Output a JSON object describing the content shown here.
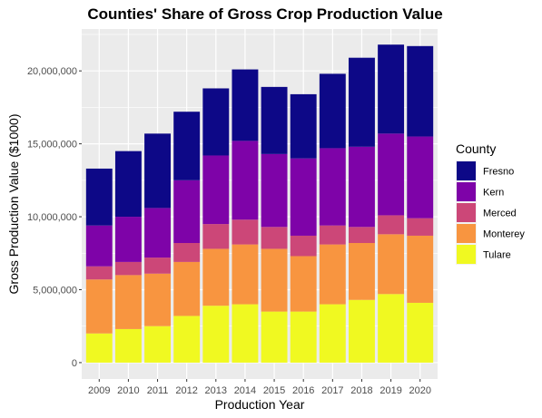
{
  "chart_data": {
    "type": "bar",
    "stacked": true,
    "title": "Counties' Share of Gross Crop Production Value",
    "xlabel": "Production Year",
    "ylabel": "Gross Production Value ($1000)",
    "ylim": [
      0,
      22500000
    ],
    "yticks": [
      0,
      5000000,
      10000000,
      15000000,
      20000000
    ],
    "ytick_labels": [
      "0",
      "5,000,000",
      "10,000,000",
      "15,000,000",
      "20,000,000"
    ],
    "grid": true,
    "legend_title": "County",
    "legend_position": "right",
    "categories": [
      "2009",
      "2010",
      "2011",
      "2012",
      "2013",
      "2014",
      "2015",
      "2016",
      "2017",
      "2018",
      "2019",
      "2020"
    ],
    "series": [
      {
        "name": "Tulare",
        "color": "#f0f921",
        "values": [
          2000000,
          2300000,
          2500000,
          3200000,
          3900000,
          4000000,
          3500000,
          3500000,
          4000000,
          4300000,
          4700000,
          4100000
        ]
      },
      {
        "name": "Monterey",
        "color": "#f89540",
        "values": [
          3700000,
          3700000,
          3600000,
          3700000,
          3900000,
          4100000,
          4300000,
          3800000,
          4100000,
          3900000,
          4100000,
          4600000
        ]
      },
      {
        "name": "Merced",
        "color": "#cc4778",
        "values": [
          900000,
          900000,
          1100000,
          1300000,
          1700000,
          1700000,
          1500000,
          1400000,
          1300000,
          1100000,
          1300000,
          1200000
        ]
      },
      {
        "name": "Kern",
        "color": "#7e03a8",
        "values": [
          2800000,
          3100000,
          3400000,
          4300000,
          4700000,
          5400000,
          5000000,
          5300000,
          5300000,
          5500000,
          5600000,
          5600000
        ]
      },
      {
        "name": "Fresno",
        "color": "#0d0887",
        "values": [
          3900000,
          4500000,
          5100000,
          4700000,
          4600000,
          4900000,
          4600000,
          4400000,
          5100000,
          6100000,
          6100000,
          6200000
        ]
      }
    ]
  }
}
